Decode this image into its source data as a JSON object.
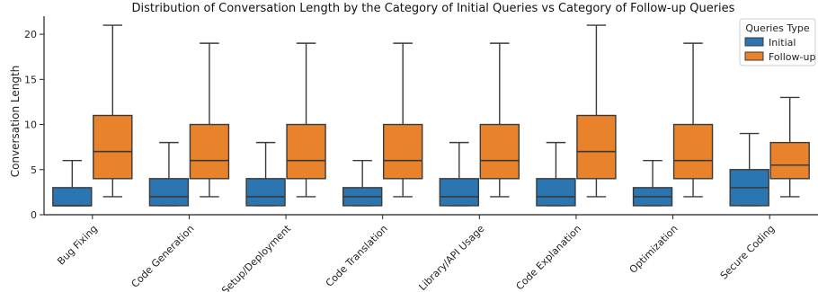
{
  "chart_data": {
    "type": "box",
    "title": "Distribution of Conversation Length by the Category of Initial Queries vs Category of Follow-up Queries",
    "xlabel": "",
    "ylabel": "Conversation Length",
    "ylim": [
      0,
      22
    ],
    "yticks": [
      0,
      5,
      10,
      15,
      20
    ],
    "categories": [
      "Bug Fixing",
      "Code Generation",
      "Setup/Deployment",
      "Code Translation",
      "Library/API Usage",
      "Code Explanation",
      "Optimization",
      "Secure Coding"
    ],
    "legend": {
      "title": "Queries Type",
      "position": "top-right"
    },
    "series": [
      {
        "name": "Initial",
        "color": "#2b75b0",
        "boxes": [
          {
            "min": 1,
            "q1": 1,
            "median": 1,
            "q3": 3,
            "max": 6
          },
          {
            "min": 1,
            "q1": 1,
            "median": 2,
            "q3": 4,
            "max": 8
          },
          {
            "min": 1,
            "q1": 1,
            "median": 2,
            "q3": 4,
            "max": 8
          },
          {
            "min": 1,
            "q1": 1,
            "median": 2,
            "q3": 3,
            "max": 6
          },
          {
            "min": 1,
            "q1": 1,
            "median": 2,
            "q3": 4,
            "max": 8
          },
          {
            "min": 1,
            "q1": 1,
            "median": 2,
            "q3": 4,
            "max": 8
          },
          {
            "min": 1,
            "q1": 1,
            "median": 2,
            "q3": 3,
            "max": 6
          },
          {
            "min": 1,
            "q1": 1,
            "median": 3,
            "q3": 5,
            "max": 9
          }
        ]
      },
      {
        "name": "Follow-up",
        "color": "#e8832b",
        "boxes": [
          {
            "min": 2,
            "q1": 4,
            "median": 7,
            "q3": 11,
            "max": 21
          },
          {
            "min": 2,
            "q1": 4,
            "median": 6,
            "q3": 10,
            "max": 19
          },
          {
            "min": 2,
            "q1": 4,
            "median": 6,
            "q3": 10,
            "max": 19
          },
          {
            "min": 2,
            "q1": 4,
            "median": 6,
            "q3": 10,
            "max": 19
          },
          {
            "min": 2,
            "q1": 4,
            "median": 6,
            "q3": 10,
            "max": 19
          },
          {
            "min": 2,
            "q1": 4,
            "median": 7,
            "q3": 11,
            "max": 21
          },
          {
            "min": 2,
            "q1": 4,
            "median": 6,
            "q3": 10,
            "max": 19
          },
          {
            "min": 2,
            "q1": 4,
            "median": 5.5,
            "q3": 8,
            "max": 13
          }
        ]
      }
    ]
  }
}
